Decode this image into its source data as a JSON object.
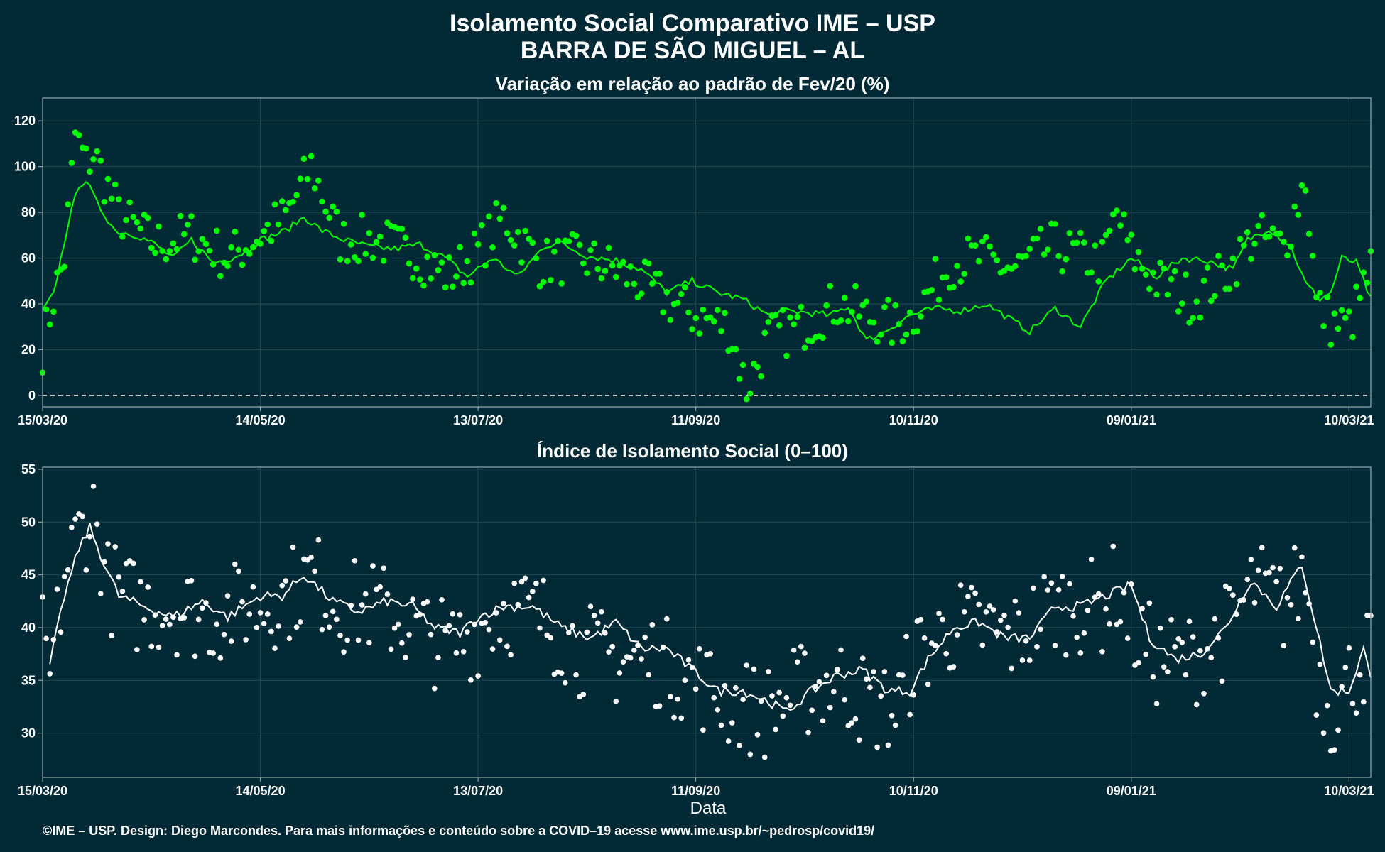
{
  "title_line1": "Isolamento Social Comparativo IME – USP",
  "title_line2": "BARRA DE SÃO MIGUEL – AL",
  "xlabel": "Data",
  "caption": "©IME – USP. Design: Diego Marcondes. Para mais informações e conteúdo sobre a COVID–19 acesse www.ime.usp.br/~pedrosp/covid19/",
  "colors": {
    "background": "#022a36",
    "panel_border": "#8aa0a6",
    "grid": "#1d4a56",
    "series_top": "#00ff00",
    "series_bottom": "#ffffff"
  },
  "chart_data": [
    {
      "type": "scatter",
      "title": "Variação em relação ao padrão de Fev/20 (%)",
      "x_type": "date",
      "x_start": "2020-03-15",
      "x_end": "2021-03-16",
      "x_tick_labels": [
        "15/03/20",
        "14/05/20",
        "13/07/20",
        "11/09/20",
        "10/11/20",
        "09/01/21",
        "10/03/21"
      ],
      "ylim": [
        -5,
        130
      ],
      "yticks": [
        0,
        20,
        40,
        60,
        80,
        100,
        120
      ],
      "reference_line": 0,
      "series": [
        {
          "role": "daily-points",
          "anchors": [
            [
              "2020-03-15",
              21
            ],
            [
              "2020-03-18",
              43
            ],
            [
              "2020-03-21",
              60
            ],
            [
              "2020-03-24",
              114
            ],
            [
              "2020-03-27",
              101
            ],
            [
              "2020-03-29",
              106
            ],
            [
              "2020-04-05",
              79
            ],
            [
              "2020-04-15",
              66
            ],
            [
              "2020-04-25",
              70
            ],
            [
              "2020-05-05",
              60
            ],
            [
              "2020-05-14",
              70
            ],
            [
              "2020-05-21",
              78
            ],
            [
              "2020-05-28",
              100
            ],
            [
              "2020-06-05",
              68
            ],
            [
              "2020-06-15",
              68
            ],
            [
              "2020-06-25",
              62
            ],
            [
              "2020-07-05",
              52
            ],
            [
              "2020-07-13",
              63
            ],
            [
              "2020-07-20",
              78
            ],
            [
              "2020-07-30",
              58
            ],
            [
              "2020-08-10",
              60
            ],
            [
              "2020-08-20",
              55
            ],
            [
              "2020-08-31",
              45
            ],
            [
              "2020-09-05",
              40
            ],
            [
              "2020-09-11",
              35
            ],
            [
              "2020-09-20",
              30
            ],
            [
              "2020-09-25",
              3
            ],
            [
              "2020-10-01",
              25
            ],
            [
              "2020-10-10",
              30
            ],
            [
              "2020-10-20",
              40
            ],
            [
              "2020-10-28",
              35
            ],
            [
              "2020-11-05",
              30
            ],
            [
              "2020-11-10",
              35
            ],
            [
              "2020-11-20",
              58
            ],
            [
              "2020-11-28",
              60
            ],
            [
              "2020-12-08",
              55
            ],
            [
              "2020-12-18",
              65
            ],
            [
              "2020-12-28",
              60
            ],
            [
              "2021-01-01",
              58
            ],
            [
              "2021-01-05",
              80
            ],
            [
              "2021-01-09",
              62
            ],
            [
              "2021-01-16",
              50
            ],
            [
              "2021-01-26",
              42
            ],
            [
              "2021-02-05",
              55
            ],
            [
              "2021-02-12",
              70
            ],
            [
              "2021-02-20",
              65
            ],
            [
              "2021-02-26",
              95
            ],
            [
              "2021-03-01",
              40
            ],
            [
              "2021-03-05",
              32
            ],
            [
              "2021-03-10",
              30
            ],
            [
              "2021-03-16",
              55
            ]
          ],
          "spread": 11
        },
        {
          "role": "moving-average",
          "anchors": [
            [
              "2020-03-15",
              37
            ],
            [
              "2020-03-18",
              44
            ],
            [
              "2020-03-22",
              75
            ],
            [
              "2020-03-25",
              92
            ],
            [
              "2020-03-27",
              94
            ],
            [
              "2020-03-30",
              84
            ],
            [
              "2020-04-04",
              72
            ],
            [
              "2020-04-10",
              70
            ],
            [
              "2020-04-15",
              66
            ],
            [
              "2020-04-20",
              60
            ],
            [
              "2020-04-25",
              68
            ],
            [
              "2020-05-01",
              58
            ],
            [
              "2020-05-06",
              60
            ],
            [
              "2020-05-10",
              63
            ],
            [
              "2020-05-14",
              68
            ],
            [
              "2020-05-21",
              72
            ],
            [
              "2020-05-26",
              78
            ],
            [
              "2020-05-31",
              72
            ],
            [
              "2020-06-06",
              68
            ],
            [
              "2020-06-13",
              65
            ],
            [
              "2020-06-20",
              64
            ],
            [
              "2020-06-27",
              66
            ],
            [
              "2020-07-04",
              60
            ],
            [
              "2020-07-10",
              52
            ],
            [
              "2020-07-17",
              60
            ],
            [
              "2020-07-24",
              52
            ],
            [
              "2020-07-31",
              65
            ],
            [
              "2020-08-04",
              67
            ],
            [
              "2020-08-12",
              61
            ],
            [
              "2020-08-20",
              59
            ],
            [
              "2020-08-27",
              55
            ],
            [
              "2020-09-03",
              45
            ],
            [
              "2020-09-10",
              50
            ],
            [
              "2020-09-17",
              45
            ],
            [
              "2020-09-24",
              42
            ],
            [
              "2020-10-01",
              35
            ],
            [
              "2020-10-06",
              37
            ],
            [
              "2020-10-13",
              36
            ],
            [
              "2020-10-18",
              35
            ],
            [
              "2020-10-23",
              39
            ],
            [
              "2020-10-28",
              24
            ],
            [
              "2020-11-02",
              28
            ],
            [
              "2020-11-09",
              35
            ],
            [
              "2020-11-16",
              38
            ],
            [
              "2020-11-23",
              37
            ],
            [
              "2020-11-30",
              40
            ],
            [
              "2020-12-07",
              33
            ],
            [
              "2020-12-12",
              28
            ],
            [
              "2020-12-19",
              38
            ],
            [
              "2020-12-26",
              30
            ],
            [
              "2021-01-02",
              50
            ],
            [
              "2021-01-09",
              60
            ],
            [
              "2021-01-16",
              52
            ],
            [
              "2021-01-23",
              60
            ],
            [
              "2021-01-30",
              59
            ],
            [
              "2021-02-06",
              55
            ],
            [
              "2021-02-10",
              68
            ],
            [
              "2021-02-16",
              73
            ],
            [
              "2021-02-22",
              65
            ],
            [
              "2021-02-26",
              49
            ],
            [
              "2021-03-02",
              42
            ],
            [
              "2021-03-05",
              45
            ],
            [
              "2021-03-08",
              60
            ],
            [
              "2021-03-12",
              58
            ],
            [
              "2021-03-16",
              42
            ]
          ]
        }
      ]
    },
    {
      "type": "scatter",
      "title": "Índice de Isolamento Social (0–100)",
      "x_type": "date",
      "x_start": "2020-03-15",
      "x_end": "2021-03-16",
      "x_tick_labels": [
        "15/03/20",
        "14/05/20",
        "13/07/20",
        "11/09/20",
        "10/11/20",
        "09/01/21",
        "10/03/21"
      ],
      "ylim": [
        25.8,
        55.2
      ],
      "yticks": [
        30,
        35,
        40,
        45,
        50,
        55
      ],
      "series": [
        {
          "role": "daily-points",
          "anchors": [
            [
              "2020-03-15",
              39
            ],
            [
              "2020-03-17",
              35
            ],
            [
              "2020-03-21",
              45
            ],
            [
              "2020-03-25",
              49
            ],
            [
              "2020-03-29",
              51
            ],
            [
              "2020-04-02",
              44
            ],
            [
              "2020-04-10",
              42
            ],
            [
              "2020-04-20",
              42
            ],
            [
              "2020-04-30",
              41
            ],
            [
              "2020-05-10",
              42
            ],
            [
              "2020-05-14",
              42
            ],
            [
              "2020-05-21",
              43
            ],
            [
              "2020-05-28",
              45
            ],
            [
              "2020-06-05",
              42
            ],
            [
              "2020-06-15",
              42
            ],
            [
              "2020-06-25",
              40
            ],
            [
              "2020-07-05",
              38
            ],
            [
              "2020-07-13",
              40
            ],
            [
              "2020-07-20",
              42
            ],
            [
              "2020-07-30",
              41
            ],
            [
              "2020-08-10",
              38
            ],
            [
              "2020-08-20",
              37
            ],
            [
              "2020-08-31",
              37
            ],
            [
              "2020-09-05",
              36
            ],
            [
              "2020-09-11",
              35
            ],
            [
              "2020-09-20",
              33
            ],
            [
              "2020-09-30",
              32
            ],
            [
              "2020-10-10",
              34
            ],
            [
              "2020-10-20",
              35
            ],
            [
              "2020-10-28",
              33
            ],
            [
              "2020-11-05",
              32
            ],
            [
              "2020-11-10",
              37
            ],
            [
              "2020-11-20",
              40
            ],
            [
              "2020-11-28",
              40
            ],
            [
              "2020-12-08",
              39
            ],
            [
              "2020-12-18",
              42
            ],
            [
              "2020-12-28",
              42
            ],
            [
              "2021-01-01",
              42
            ],
            [
              "2021-01-05",
              44
            ],
            [
              "2021-01-09",
              40
            ],
            [
              "2021-01-16",
              37
            ],
            [
              "2021-01-26",
              37
            ],
            [
              "2021-02-05",
              40
            ],
            [
              "2021-02-12",
              44
            ],
            [
              "2021-02-20",
              42
            ],
            [
              "2021-02-26",
              45
            ],
            [
              "2021-03-01",
              36
            ],
            [
              "2021-03-05",
              32
            ],
            [
              "2021-03-10",
              35
            ],
            [
              "2021-03-16",
              38
            ]
          ],
          "spread": 4.6
        },
        {
          "role": "moving-average",
          "anchors": [
            [
              "2020-03-17",
              36.5
            ],
            [
              "2020-03-21",
              43
            ],
            [
              "2020-03-25",
              47.5
            ],
            [
              "2020-03-28",
              49.5
            ],
            [
              "2020-04-01",
              46
            ],
            [
              "2020-04-05",
              43
            ],
            [
              "2020-04-12",
              42
            ],
            [
              "2020-04-20",
              41
            ],
            [
              "2020-04-28",
              42.5
            ],
            [
              "2020-05-05",
              41
            ],
            [
              "2020-05-14",
              43
            ],
            [
              "2020-05-20",
              43
            ],
            [
              "2020-05-26",
              45
            ],
            [
              "2020-06-03",
              42.5
            ],
            [
              "2020-06-10",
              41.5
            ],
            [
              "2020-06-18",
              42.5
            ],
            [
              "2020-06-25",
              42
            ],
            [
              "2020-07-01",
              40
            ],
            [
              "2020-07-08",
              39.5
            ],
            [
              "2020-07-13",
              41
            ],
            [
              "2020-07-20",
              42
            ],
            [
              "2020-07-28",
              42
            ],
            [
              "2020-08-05",
              40
            ],
            [
              "2020-08-13",
              39
            ],
            [
              "2020-08-20",
              40.5
            ],
            [
              "2020-08-27",
              38
            ],
            [
              "2020-09-03",
              38
            ],
            [
              "2020-09-10",
              36
            ],
            [
              "2020-09-17",
              34
            ],
            [
              "2020-09-24",
              34
            ],
            [
              "2020-10-01",
              33
            ],
            [
              "2020-10-06",
              32
            ],
            [
              "2020-10-13",
              34
            ],
            [
              "2020-10-20",
              35.5
            ],
            [
              "2020-10-27",
              36
            ],
            [
              "2020-11-03",
              34
            ],
            [
              "2020-11-09",
              34
            ],
            [
              "2020-11-14",
              37
            ],
            [
              "2020-11-21",
              40
            ],
            [
              "2020-11-28",
              40.5
            ],
            [
              "2020-12-05",
              39
            ],
            [
              "2020-12-12",
              39
            ],
            [
              "2020-12-19",
              42
            ],
            [
              "2020-12-26",
              42
            ],
            [
              "2021-01-02",
              43
            ],
            [
              "2021-01-09",
              44
            ],
            [
              "2021-01-14",
              39
            ],
            [
              "2021-01-21",
              37
            ],
            [
              "2021-01-28",
              37.5
            ],
            [
              "2021-02-04",
              40
            ],
            [
              "2021-02-11",
              44.5
            ],
            [
              "2021-02-18",
              42
            ],
            [
              "2021-02-25",
              46
            ],
            [
              "2021-03-01",
              40
            ],
            [
              "2021-03-05",
              34
            ],
            [
              "2021-03-10",
              34
            ],
            [
              "2021-03-14",
              38
            ],
            [
              "2021-03-16",
              35
            ]
          ]
        }
      ]
    }
  ]
}
